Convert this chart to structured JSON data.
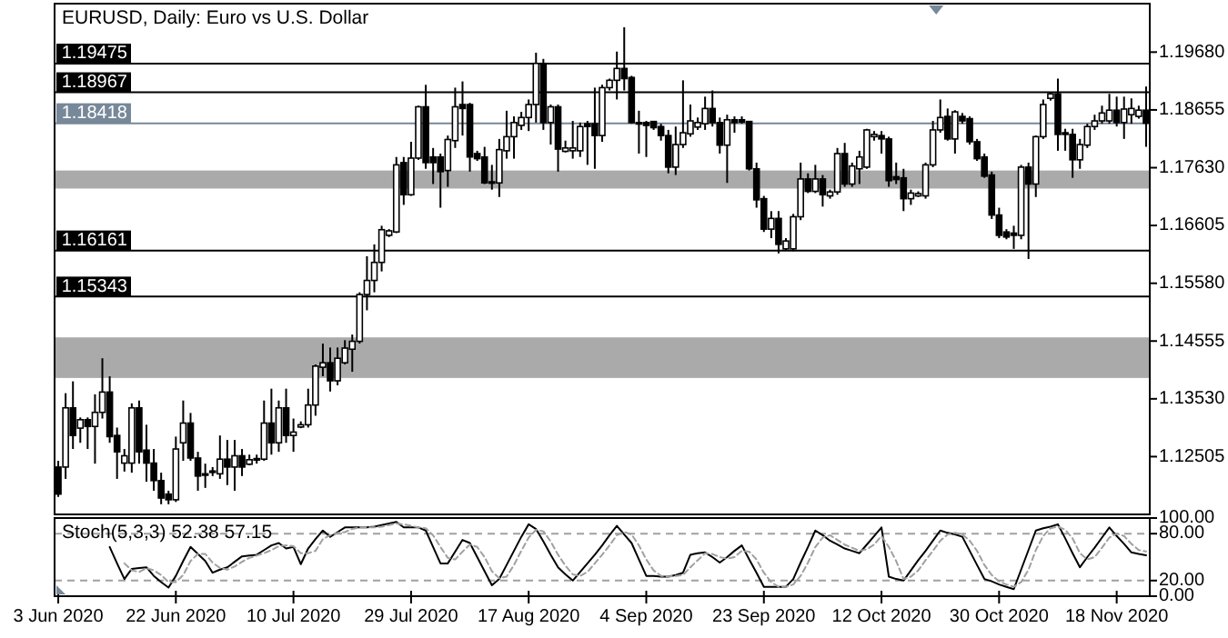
{
  "chart_data": [
    {
      "type": "candlestick",
      "title": "EURUSD, Daily:  Euro vs U.S. Dollar",
      "categories": [
        null,
        null,
        null,
        null,
        null,
        null,
        null,
        null,
        null,
        null,
        null,
        null,
        null,
        null,
        null,
        null,
        null,
        null,
        null,
        null,
        null,
        null,
        null,
        null,
        null,
        null,
        null,
        null,
        null,
        null,
        null,
        null,
        null,
        null,
        null,
        null,
        null,
        null,
        null,
        null,
        null,
        null,
        null,
        null,
        null,
        null,
        null,
        null,
        null,
        null,
        null,
        null,
        null,
        null,
        null,
        null,
        null,
        null,
        null,
        null,
        null,
        null,
        null,
        null,
        null,
        null,
        null,
        null,
        null,
        null,
        null,
        null,
        null,
        null,
        null,
        null,
        null,
        null,
        null,
        null,
        null,
        null,
        null,
        null,
        null,
        null,
        null,
        null,
        null,
        null,
        null,
        null,
        null,
        null,
        null,
        null,
        null,
        null,
        null,
        null,
        null,
        null,
        null,
        null,
        null,
        null,
        null,
        null,
        null,
        null,
        null,
        null,
        null,
        null,
        null,
        null,
        null,
        null,
        null,
        null,
        null,
        null,
        null,
        null,
        null,
        null,
        null,
        null,
        null,
        null,
        null,
        null,
        null,
        null,
        null,
        null,
        null,
        null,
        null,
        null,
        null,
        null,
        null,
        null,
        null,
        null,
        null,
        null,
        null
      ],
      "ohlc": [
        [
          1.1232,
          1.1243,
          1.1179,
          1.1184
        ],
        [
          1.1232,
          1.1363,
          1.1211,
          1.1337
        ],
        [
          1.1337,
          1.1384,
          1.1264,
          1.1288
        ],
        [
          1.1301,
          1.132,
          1.1275,
          1.1316
        ],
        [
          1.1316,
          1.132,
          1.1264,
          1.1304
        ],
        [
          1.1304,
          1.1361,
          1.1238,
          1.1329
        ],
        [
          1.1329,
          1.1425,
          1.1318,
          1.1365
        ],
        [
          1.1365,
          1.1393,
          1.1275,
          1.1286
        ],
        [
          1.1288,
          1.1302,
          1.1211,
          1.1259
        ],
        [
          1.1239,
          1.1264,
          1.1224,
          1.1252
        ],
        [
          1.1239,
          1.1345,
          1.1222,
          1.1337
        ],
        [
          1.1337,
          1.135,
          1.1238,
          1.1259
        ],
        [
          1.1262,
          1.1307,
          1.1206,
          1.1239
        ],
        [
          1.1239,
          1.1264,
          1.119,
          1.1208
        ],
        [
          1.1208,
          1.1222,
          1.1166,
          1.1177
        ],
        [
          1.1184,
          1.119,
          1.1166,
          1.1174
        ],
        [
          1.1174,
          1.1286,
          1.117,
          1.1264
        ],
        [
          1.1275,
          1.135,
          1.1243,
          1.131
        ],
        [
          1.131,
          1.1328,
          1.1243,
          1.1248
        ],
        [
          1.1248,
          1.1259,
          1.119,
          1.1216
        ],
        [
          1.122,
          1.1238,
          1.1195,
          1.1219
        ],
        [
          1.1224,
          1.1232,
          1.1216,
          1.1225
        ],
        [
          1.122,
          1.1288,
          1.1211,
          1.1246
        ],
        [
          1.1246,
          1.128,
          1.12,
          1.1232
        ],
        [
          1.1232,
          1.128,
          1.119,
          1.1252
        ],
        [
          1.1252,
          1.1264,
          1.1216,
          1.1232
        ],
        [
          1.1237,
          1.1254,
          1.1235,
          1.1245
        ],
        [
          1.1245,
          1.1254,
          1.1238,
          1.1247
        ],
        [
          1.1246,
          1.135,
          1.1243,
          1.131
        ],
        [
          1.131,
          1.1371,
          1.1254,
          1.1275
        ],
        [
          1.1275,
          1.135,
          1.1259,
          1.1337
        ],
        [
          1.1337,
          1.1371,
          1.1275,
          1.1288
        ],
        [
          1.1288,
          1.1318,
          1.1259,
          1.1294
        ],
        [
          1.1303,
          1.1313,
          1.1301,
          1.1307
        ],
        [
          1.1307,
          1.1371,
          1.1302,
          1.1342
        ],
        [
          1.1342,
          1.1414,
          1.1323,
          1.1411
        ],
        [
          1.1409,
          1.1451,
          1.1393,
          1.1417
        ],
        [
          1.1417,
          1.1444,
          1.1366,
          1.1385
        ],
        [
          1.1385,
          1.1444,
          1.1377,
          1.1425
        ],
        [
          1.1417,
          1.1457,
          1.1414,
          1.1443
        ],
        [
          1.1441,
          1.1467,
          1.1401,
          1.1455
        ],
        [
          1.1455,
          1.1542,
          1.1451,
          1.1538
        ],
        [
          1.1538,
          1.1606,
          1.151,
          1.1563
        ],
        [
          1.1563,
          1.1627,
          1.1542,
          1.1595
        ],
        [
          1.1595,
          1.166,
          1.1579,
          1.1653
        ],
        [
          1.1643,
          1.1654,
          1.164,
          1.1651
        ],
        [
          1.1649,
          1.1782,
          1.1647,
          1.1768
        ],
        [
          1.1772,
          1.1782,
          1.1697,
          1.1715
        ],
        [
          1.1715,
          1.1809,
          1.1713,
          1.178
        ],
        [
          1.178,
          1.1873,
          1.1777,
          1.1871
        ],
        [
          1.1871,
          1.191,
          1.1761,
          1.1772
        ],
        [
          1.1782,
          1.1798,
          1.1734,
          1.1772
        ],
        [
          1.1782,
          1.1788,
          1.1692,
          1.1756
        ],
        [
          1.1758,
          1.182,
          1.1729,
          1.1813
        ],
        [
          1.1811,
          1.1905,
          1.1798,
          1.1871
        ],
        [
          1.1875,
          1.1916,
          1.182,
          1.1868
        ],
        [
          1.1875,
          1.1878,
          1.1756,
          1.1782
        ],
        [
          1.1788,
          1.1793,
          1.1775,
          1.1779
        ],
        [
          1.1782,
          1.18,
          1.1734,
          1.1736
        ],
        [
          1.1738,
          1.1768,
          1.1724,
          1.1737
        ],
        [
          1.1736,
          1.1814,
          1.1711,
          1.1795
        ],
        [
          1.1793,
          1.1864,
          1.1779,
          1.1818
        ],
        [
          1.1818,
          1.1854,
          1.1779,
          1.1843
        ],
        [
          1.1838,
          1.1862,
          1.183,
          1.1852
        ],
        [
          1.1852,
          1.1884,
          1.1828,
          1.1875
        ],
        [
          1.1875,
          1.1967,
          1.1843,
          1.1948
        ],
        [
          1.1948,
          1.1956,
          1.183,
          1.1843
        ],
        [
          1.1843,
          1.1875,
          1.1804,
          1.1871
        ],
        [
          1.1871,
          1.1875,
          1.1756,
          1.1796
        ],
        [
          1.1792,
          1.1811,
          1.179,
          1.1798
        ],
        [
          1.1793,
          1.1846,
          1.1779,
          1.1798
        ],
        [
          1.1793,
          1.1843,
          1.1782,
          1.1836
        ],
        [
          1.1841,
          1.1846,
          1.1768,
          1.1836
        ],
        [
          1.1841,
          1.1905,
          1.1761,
          1.182
        ],
        [
          1.182,
          1.191,
          1.1809,
          1.1905
        ],
        [
          1.1905,
          1.1921,
          1.19,
          1.1918
        ],
        [
          1.1918,
          1.1969,
          1.1884,
          1.1939
        ],
        [
          1.1939,
          1.2012,
          1.19,
          1.1921
        ],
        [
          1.1923,
          1.1926,
          1.1841,
          1.1843
        ],
        [
          1.1843,
          1.1864,
          1.1788,
          1.1842
        ],
        [
          1.1843,
          1.1846,
          1.1782,
          1.1838
        ],
        [
          1.1845,
          1.1845,
          1.183,
          1.1834
        ],
        [
          1.1836,
          1.1841,
          1.1811,
          1.182
        ],
        [
          1.182,
          1.183,
          1.1753,
          1.1764
        ],
        [
          1.1764,
          1.1836,
          1.175,
          1.1804
        ],
        [
          1.1804,
          1.1918,
          1.1798,
          1.1825
        ],
        [
          1.1823,
          1.1875,
          1.1818,
          1.1846
        ],
        [
          1.1835,
          1.1852,
          1.183,
          1.1843
        ],
        [
          1.1841,
          1.1889,
          1.183,
          1.1868
        ],
        [
          1.1868,
          1.19,
          1.1836,
          1.1843
        ],
        [
          1.1843,
          1.1852,
          1.1788,
          1.1803
        ],
        [
          1.1803,
          1.1857,
          1.1736,
          1.1848
        ],
        [
          1.1848,
          1.1854,
          1.1825,
          1.1843
        ],
        [
          1.1848,
          1.1854,
          1.1841,
          1.1844
        ],
        [
          1.1845,
          1.1846,
          1.1758,
          1.1761
        ],
        [
          1.1761,
          1.1772,
          1.1692,
          1.1706
        ],
        [
          1.1708,
          1.1713,
          1.1649,
          1.1654
        ],
        [
          1.1654,
          1.1686,
          1.1638,
          1.1673
        ],
        [
          1.1673,
          1.1686,
          1.1611,
          1.1627
        ],
        [
          1.1619,
          1.1638,
          1.1617,
          1.1633
        ],
        [
          1.1619,
          1.1681,
          1.1615,
          1.1676
        ],
        [
          1.1676,
          1.1772,
          1.167,
          1.1743
        ],
        [
          1.1743,
          1.1753,
          1.1718,
          1.1721
        ],
        [
          1.1721,
          1.1768,
          1.1718,
          1.1743
        ],
        [
          1.1743,
          1.175,
          1.1694,
          1.1715
        ],
        [
          1.1713,
          1.1724,
          1.1708,
          1.172
        ],
        [
          1.172,
          1.1798,
          1.1715,
          1.1788
        ],
        [
          1.1788,
          1.1807,
          1.1729,
          1.1734
        ],
        [
          1.1734,
          1.1772,
          1.1729,
          1.1766
        ],
        [
          1.1761,
          1.1793,
          1.1734,
          1.1782
        ],
        [
          1.1764,
          1.1832,
          1.1761,
          1.183
        ],
        [
          1.1818,
          1.1828,
          1.1811,
          1.1822
        ],
        [
          1.182,
          1.1828,
          1.1788,
          1.1814
        ],
        [
          1.1814,
          1.1818,
          1.1729,
          1.174
        ],
        [
          1.1747,
          1.1772,
          1.1734,
          1.1742
        ],
        [
          1.1745,
          1.1761,
          1.1686,
          1.1708
        ],
        [
          1.1708,
          1.1724,
          1.1697,
          1.1718
        ],
        [
          1.1713,
          1.1721,
          1.1711,
          1.1717
        ],
        [
          1.1713,
          1.1772,
          1.1708,
          1.1768
        ],
        [
          1.1768,
          1.1846,
          1.1764,
          1.183
        ],
        [
          1.183,
          1.1884,
          1.1825,
          1.1852
        ],
        [
          1.1854,
          1.1868,
          1.1811,
          1.1814
        ],
        [
          1.1814,
          1.1865,
          1.1788,
          1.1862
        ],
        [
          1.1854,
          1.186,
          1.1841,
          1.1846
        ],
        [
          1.185,
          1.1854,
          1.1804,
          1.1809
        ],
        [
          1.1809,
          1.1814,
          1.1775,
          1.1779
        ],
        [
          1.1782,
          1.1788,
          1.1745,
          1.1748
        ],
        [
          1.175,
          1.1756,
          1.1672,
          1.1679
        ],
        [
          1.1679,
          1.1692,
          1.1638,
          1.1643
        ],
        [
          1.1649,
          1.1654,
          1.1636,
          1.164
        ],
        [
          1.1647,
          1.166,
          1.1619,
          1.1643
        ],
        [
          1.1643,
          1.1768,
          1.1636,
          1.1764
        ],
        [
          1.1764,
          1.1772,
          1.1601,
          1.1734
        ],
        [
          1.1734,
          1.182,
          1.1711,
          1.1818
        ],
        [
          1.1818,
          1.1884,
          1.1814,
          1.1875
        ],
        [
          1.1886,
          1.1897,
          1.1882,
          1.1894
        ],
        [
          1.1894,
          1.1921,
          1.1793,
          1.1822
        ],
        [
          1.1825,
          1.1832,
          1.1793,
          1.1822
        ],
        [
          1.1822,
          1.1832,
          1.1745,
          1.1777
        ],
        [
          1.1777,
          1.1814,
          1.1761,
          1.1804
        ],
        [
          1.1803,
          1.1841,
          1.1798,
          1.1836
        ],
        [
          1.1836,
          1.1857,
          1.183,
          1.1846
        ],
        [
          1.1846,
          1.1873,
          1.1841,
          1.186
        ],
        [
          1.1846,
          1.1894,
          1.1841,
          1.1865
        ],
        [
          1.1865,
          1.1889,
          1.1836,
          1.1843
        ],
        [
          1.1843,
          1.1889,
          1.1814,
          1.1867
        ],
        [
          1.1857,
          1.1886,
          1.1841,
          1.1868
        ],
        [
          1.1854,
          1.1873,
          1.185,
          1.1865
        ],
        [
          1.1865,
          1.1907,
          1.18,
          1.1842
        ]
      ],
      "ylim": [
        1.1148,
        1.2054
      ],
      "yticks": [
        {
          "value": 1.1968,
          "label": "1.19680"
        },
        {
          "value": 1.18655,
          "label": "1.18655"
        },
        {
          "value": 1.1763,
          "label": "1.17630"
        },
        {
          "value": 1.16605,
          "label": "1.16605"
        },
        {
          "value": 1.1558,
          "label": "1.15580"
        },
        {
          "value": 1.14555,
          "label": "1.14555"
        },
        {
          "value": 1.1353,
          "label": "1.13530"
        },
        {
          "value": 1.12505,
          "label": "1.12505"
        }
      ],
      "ref_lines": [
        {
          "axis": "y",
          "value": 1.19475,
          "label": "1.19475",
          "color": "#000000"
        },
        {
          "axis": "y",
          "value": 1.18967,
          "label": "1.18967",
          "color": "#000000"
        },
        {
          "axis": "y",
          "value": 1.18418,
          "label": "1.18418",
          "color": "#778899"
        },
        {
          "axis": "y",
          "value": 1.16161,
          "label": "1.16161",
          "color": "#000000"
        },
        {
          "axis": "y",
          "value": 1.15343,
          "label": "1.15343",
          "color": "#000000"
        }
      ],
      "bands": [
        {
          "axis": "y",
          "from": 1.139,
          "to": 1.1462,
          "color": "#aaaaaa"
        },
        {
          "axis": "y",
          "from": 1.1726,
          "to": 1.1758,
          "color": "#aaaaaa"
        }
      ],
      "tick_labels": "y"
    },
    {
      "type": "line",
      "title": "Stoch(5,3,3) 52.38 57.15",
      "categories": [
        "3 Jun 2020",
        null,
        null,
        null,
        null,
        null,
        null,
        null,
        null,
        null,
        null,
        null,
        null,
        null,
        null,
        null,
        "22 Jun 2020",
        null,
        null,
        null,
        null,
        null,
        null,
        null,
        null,
        null,
        null,
        null,
        null,
        null,
        null,
        null,
        "10 Jul 2020",
        null,
        null,
        null,
        null,
        null,
        null,
        null,
        null,
        null,
        null,
        null,
        null,
        null,
        null,
        null,
        "29 Jul 2020",
        null,
        null,
        null,
        null,
        null,
        null,
        null,
        null,
        null,
        null,
        null,
        null,
        null,
        null,
        null,
        "17 Aug 2020",
        null,
        null,
        null,
        null,
        null,
        null,
        null,
        null,
        null,
        null,
        null,
        null,
        null,
        null,
        null,
        "4 Sep 2020",
        null,
        null,
        null,
        null,
        null,
        null,
        null,
        null,
        null,
        null,
        null,
        null,
        null,
        null,
        null,
        "23 Sep 2020",
        null,
        null,
        null,
        null,
        null,
        null,
        null,
        null,
        null,
        null,
        null,
        null,
        null,
        null,
        null,
        "12 Oct 2020",
        null,
        null,
        null,
        null,
        null,
        null,
        null,
        null,
        null,
        null,
        null,
        null,
        null,
        null,
        null,
        "30 Oct 2020",
        null,
        null,
        null,
        null,
        null,
        null,
        null,
        null,
        null,
        null,
        null,
        null,
        null,
        null,
        null,
        "18 Nov 2020",
        null,
        null,
        null,
        null
      ],
      "series": [
        {
          "color": "#000000",
          "line_style": "solid",
          "values": [
            null,
            null,
            null,
            null,
            null,
            null,
            null,
            63,
            42,
            22,
            35,
            36,
            37,
            26,
            18,
            11,
            26,
            45,
            63,
            54,
            45,
            30,
            34,
            37,
            44,
            51,
            52,
            53,
            59,
            65,
            68,
            61,
            63,
            41,
            61,
            73,
            84,
            76,
            82,
            88,
            88,
            88,
            88,
            89,
            91,
            93,
            95,
            88,
            88,
            88,
            84,
            63,
            42,
            42,
            57,
            72,
            68,
            50,
            32,
            14,
            22,
            40,
            58,
            76,
            92,
            86,
            70,
            53,
            37,
            28,
            20,
            31,
            42,
            53,
            65,
            78,
            90,
            79,
            68,
            47,
            26,
            26,
            25,
            25,
            27,
            30,
            53,
            55,
            56,
            50,
            43,
            50,
            58,
            65,
            47,
            30,
            12,
            12,
            12,
            12,
            22,
            43,
            63,
            84,
            78,
            71,
            66,
            61,
            58,
            55,
            66,
            77,
            88,
            25,
            22,
            20,
            33,
            46,
            58,
            71,
            84,
            81,
            79,
            76,
            58,
            40,
            22,
            19,
            15,
            12,
            9,
            34,
            59,
            84,
            87,
            89,
            92,
            74,
            55,
            37,
            50,
            62,
            75,
            88,
            77,
            67,
            56,
            54,
            52.38
          ]
        },
        {
          "color": "#a0a0a0",
          "line_style": "dashed",
          "values": [
            null,
            null,
            null,
            null,
            null,
            null,
            null,
            null,
            null,
            42,
            33,
            31,
            36,
            33,
            27,
            18,
            18,
            27,
            45,
            54,
            54,
            43,
            36,
            34,
            38,
            44,
            49,
            52,
            55,
            59,
            64,
            65,
            64,
            55,
            55,
            58,
            73,
            78,
            81,
            82,
            86,
            88,
            88,
            88,
            89,
            91,
            93,
            92,
            90,
            88,
            87,
            78,
            63,
            49,
            47,
            57,
            66,
            63,
            50,
            32,
            23,
            25,
            40,
            58,
            75,
            85,
            83,
            70,
            53,
            39,
            28,
            26,
            31,
            42,
            53,
            65,
            78,
            82,
            79,
            65,
            47,
            33,
            26,
            25,
            26,
            27,
            37,
            46,
            55,
            54,
            50,
            48,
            50,
            58,
            57,
            47,
            30,
            18,
            12,
            12,
            15,
            26,
            43,
            63,
            75,
            78,
            72,
            66,
            62,
            58,
            60,
            66,
            77,
            63,
            45,
            22,
            25,
            33,
            46,
            58,
            71,
            79,
            81,
            79,
            71,
            58,
            40,
            27,
            19,
            15,
            12,
            18,
            34,
            59,
            77,
            87,
            89,
            85,
            74,
            55,
            47,
            50,
            62,
            75,
            80,
            77,
            67,
            59,
            57.15
          ]
        }
      ],
      "ylim": [
        0,
        100
      ],
      "yticks": [
        {
          "value": 100,
          "label": "100.00"
        },
        {
          "value": 80,
          "label": "80.00"
        },
        {
          "value": 20,
          "label": "20.00"
        },
        {
          "value": 0,
          "label": "0.00"
        }
      ],
      "ref_lines": [
        {
          "axis": "y",
          "value": 80,
          "color": "#a0a0a0",
          "line_style": "dashed"
        },
        {
          "axis": "y",
          "value": 20,
          "color": "#a0a0a0",
          "line_style": "dashed"
        }
      ]
    }
  ]
}
